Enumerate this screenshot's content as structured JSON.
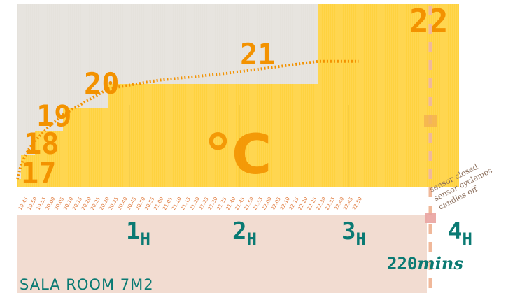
{
  "chart_data": {
    "type": "area",
    "unit": "°C",
    "steps": [
      {
        "label": "17",
        "value": 17,
        "start_min": 0,
        "end_min": 2
      },
      {
        "label": "18",
        "value": 18,
        "start_min": 2,
        "end_min": 10
      },
      {
        "label": "19",
        "value": 19,
        "start_min": 10,
        "end_min": 26
      },
      {
        "label": "20",
        "value": 20,
        "start_min": 26,
        "end_min": 52
      },
      {
        "label": "21",
        "value": 21,
        "start_min": 52,
        "end_min": 172
      },
      {
        "label": "22",
        "value": 22,
        "start_min": 172,
        "end_min": 220
      }
    ],
    "curve": [
      {
        "min": 0,
        "value": 17
      },
      {
        "min": 2,
        "value": 17.6
      },
      {
        "min": 6,
        "value": 18.2
      },
      {
        "min": 10,
        "value": 18.6
      },
      {
        "min": 18,
        "value": 19.2
      },
      {
        "min": 26,
        "value": 19.7
      },
      {
        "min": 40,
        "value": 20.3
      },
      {
        "min": 52,
        "value": 20.8
      },
      {
        "min": 80,
        "value": 21.15
      },
      {
        "min": 120,
        "value": 21.45
      },
      {
        "min": 172,
        "value": 21.95
      },
      {
        "min": 195,
        "value": 21.95
      }
    ],
    "x_ticks": [
      "19:45",
      "19:50",
      "19:55",
      "20:00",
      "20:05",
      "20:10",
      "20:15",
      "20:20",
      "20:25",
      "20:30",
      "20:35",
      "20:40",
      "20:45",
      "20:50",
      "20:55",
      "21:00",
      "21:05",
      "21:10",
      "21:15",
      "21:20",
      "21:25",
      "21:30",
      "21:35",
      "21:40",
      "21:45",
      "21:50",
      "21:55",
      "22:00",
      "22:05",
      "22:10",
      "22:15",
      "22:20",
      "22:25",
      "22:30",
      "22:35",
      "22:40",
      "22:45",
      "22:50"
    ],
    "hour_markers": [
      {
        "label": "1",
        "sub": "H",
        "min": 60
      },
      {
        "label": "2",
        "sub": "H",
        "min": 120
      },
      {
        "label": "3",
        "sub": "H",
        "min": 180
      },
      {
        "label": "4",
        "sub": "H",
        "min": 240
      }
    ],
    "total_label": "220",
    "total_suffix": "mins",
    "room": "SALA ROOM 7M2",
    "note_lines": [
      "candles off",
      "sensor cyclemos",
      "sensor closed"
    ]
  },
  "colors": {
    "fill": "#ffd23f",
    "bg_top": "#e5e2dc",
    "bg_bottom": "#f2dcd1",
    "curve": "#f39200",
    "step_text": "#f39200",
    "teal": "#0a7a73",
    "dash": "#f0b89a"
  }
}
